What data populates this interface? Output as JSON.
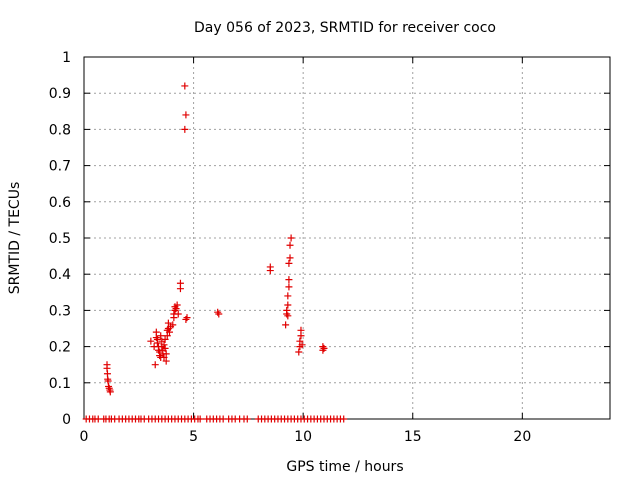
{
  "chart_data": {
    "type": "scatter",
    "title": "Day 056 of 2023, SRMTID for receiver coco",
    "xlabel": "GPS time / hours",
    "ylabel": "SRMTID / TECUs",
    "xlim": [
      0,
      24
    ],
    "ylim": [
      0,
      1
    ],
    "xticks": [
      0,
      5,
      10,
      15,
      20
    ],
    "xtick_labels": [
      "0",
      "5",
      "10",
      "15",
      "20"
    ],
    "yticks": [
      0,
      0.1,
      0.2,
      0.3,
      0.4,
      0.5,
      0.6,
      0.7,
      0.8,
      0.9,
      1
    ],
    "ytick_labels": [
      "0",
      "0.1",
      "0.2",
      "0.3",
      "0.4",
      "0.5",
      "0.6",
      "0.7",
      "0.8",
      "0.9",
      "1"
    ],
    "grid": true,
    "marker": "+",
    "marker_color": "#e00000",
    "series": [
      {
        "name": "SRMTID",
        "points": [
          [
            1.05,
            0.15
          ],
          [
            1.05,
            0.14
          ],
          [
            1.07,
            0.125
          ],
          [
            1.08,
            0.11
          ],
          [
            1.1,
            0.105
          ],
          [
            1.12,
            0.09
          ],
          [
            1.15,
            0.085
          ],
          [
            1.18,
            0.08
          ],
          [
            1.2,
            0.075
          ],
          [
            3.05,
            0.215
          ],
          [
            3.2,
            0.2
          ],
          [
            3.25,
            0.15
          ],
          [
            3.3,
            0.24
          ],
          [
            3.3,
            0.225
          ],
          [
            3.35,
            0.22
          ],
          [
            3.35,
            0.21
          ],
          [
            3.4,
            0.2
          ],
          [
            3.4,
            0.19
          ],
          [
            3.45,
            0.185
          ],
          [
            3.45,
            0.175
          ],
          [
            3.5,
            0.23
          ],
          [
            3.5,
            0.17
          ],
          [
            3.55,
            0.215
          ],
          [
            3.55,
            0.2
          ],
          [
            3.6,
            0.19
          ],
          [
            3.6,
            0.18
          ],
          [
            3.65,
            0.17
          ],
          [
            3.65,
            0.205
          ],
          [
            3.7,
            0.22
          ],
          [
            3.7,
            0.195
          ],
          [
            3.75,
            0.18
          ],
          [
            3.75,
            0.16
          ],
          [
            3.8,
            0.245
          ],
          [
            3.8,
            0.23
          ],
          [
            3.85,
            0.25
          ],
          [
            3.85,
            0.265
          ],
          [
            3.9,
            0.24
          ],
          [
            3.95,
            0.255
          ],
          [
            4.05,
            0.26
          ],
          [
            4.1,
            0.28
          ],
          [
            4.1,
            0.29
          ],
          [
            4.15,
            0.3
          ],
          [
            4.15,
            0.31
          ],
          [
            4.2,
            0.305
          ],
          [
            4.25,
            0.315
          ],
          [
            4.3,
            0.29
          ],
          [
            4.4,
            0.375
          ],
          [
            4.4,
            0.36
          ],
          [
            4.6,
            0.92
          ],
          [
            4.65,
            0.84
          ],
          [
            4.6,
            0.8
          ],
          [
            4.7,
            0.28
          ],
          [
            4.65,
            0.275
          ],
          [
            6.1,
            0.295
          ],
          [
            6.15,
            0.29
          ],
          [
            8.5,
            0.42
          ],
          [
            8.5,
            0.41
          ],
          [
            9.2,
            0.26
          ],
          [
            9.25,
            0.29
          ],
          [
            9.25,
            0.3
          ],
          [
            9.3,
            0.285
          ],
          [
            9.3,
            0.315
          ],
          [
            9.3,
            0.34
          ],
          [
            9.35,
            0.365
          ],
          [
            9.35,
            0.385
          ],
          [
            9.35,
            0.43
          ],
          [
            9.4,
            0.445
          ],
          [
            9.4,
            0.48
          ],
          [
            9.45,
            0.5
          ],
          [
            9.8,
            0.185
          ],
          [
            9.85,
            0.2
          ],
          [
            9.85,
            0.215
          ],
          [
            9.9,
            0.23
          ],
          [
            9.9,
            0.245
          ],
          [
            9.95,
            0.205
          ],
          [
            10.9,
            0.2
          ],
          [
            10.9,
            0.19
          ],
          [
            10.95,
            0.195
          ],
          [
            0.1,
            0
          ],
          [
            0.25,
            0
          ],
          [
            0.4,
            0
          ],
          [
            0.5,
            0
          ],
          [
            0.65,
            0
          ],
          [
            0.9,
            0
          ],
          [
            1.0,
            0
          ],
          [
            1.15,
            0
          ],
          [
            1.25,
            0
          ],
          [
            1.4,
            0
          ],
          [
            1.6,
            0
          ],
          [
            1.75,
            0
          ],
          [
            1.9,
            0
          ],
          [
            2.05,
            0
          ],
          [
            2.2,
            0
          ],
          [
            2.35,
            0
          ],
          [
            2.5,
            0
          ],
          [
            2.6,
            0
          ],
          [
            2.75,
            0
          ],
          [
            2.95,
            0
          ],
          [
            3.1,
            0
          ],
          [
            3.25,
            0
          ],
          [
            3.4,
            0
          ],
          [
            3.55,
            0
          ],
          [
            3.7,
            0
          ],
          [
            3.85,
            0
          ],
          [
            4.0,
            0
          ],
          [
            4.15,
            0
          ],
          [
            4.3,
            0
          ],
          [
            4.45,
            0
          ],
          [
            4.6,
            0
          ],
          [
            4.75,
            0
          ],
          [
            4.9,
            0
          ],
          [
            5.05,
            0
          ],
          [
            5.2,
            0
          ],
          [
            5.3,
            0
          ],
          [
            5.6,
            0
          ],
          [
            5.75,
            0
          ],
          [
            5.9,
            0
          ],
          [
            6.05,
            0
          ],
          [
            6.2,
            0
          ],
          [
            6.35,
            0
          ],
          [
            6.6,
            0
          ],
          [
            6.75,
            0
          ],
          [
            6.9,
            0
          ],
          [
            7.1,
            0
          ],
          [
            7.3,
            0
          ],
          [
            7.45,
            0
          ],
          [
            7.95,
            0
          ],
          [
            8.1,
            0
          ],
          [
            8.25,
            0
          ],
          [
            8.4,
            0
          ],
          [
            8.55,
            0
          ],
          [
            8.7,
            0
          ],
          [
            8.85,
            0
          ],
          [
            9.0,
            0
          ],
          [
            9.15,
            0
          ],
          [
            9.3,
            0
          ],
          [
            9.45,
            0
          ],
          [
            9.6,
            0
          ],
          [
            9.75,
            0
          ],
          [
            9.9,
            0
          ],
          [
            10.05,
            0
          ],
          [
            10.2,
            0
          ],
          [
            10.35,
            0
          ],
          [
            10.5,
            0
          ],
          [
            10.65,
            0
          ],
          [
            10.8,
            0
          ],
          [
            10.95,
            0
          ],
          [
            11.1,
            0
          ],
          [
            11.25,
            0
          ],
          [
            11.4,
            0
          ],
          [
            11.55,
            0
          ],
          [
            11.7,
            0
          ],
          [
            11.85,
            0
          ]
        ]
      }
    ]
  }
}
